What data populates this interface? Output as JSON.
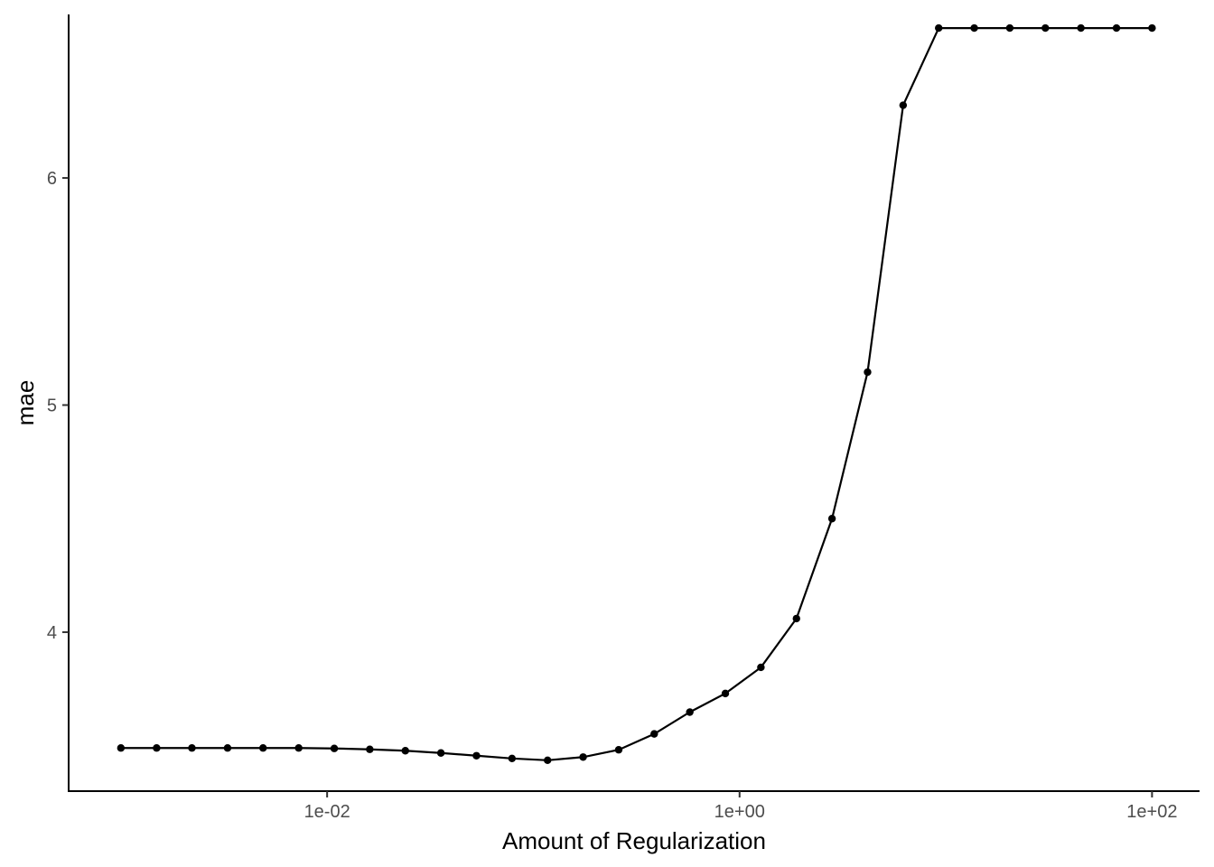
{
  "chart_data": {
    "type": "line",
    "xlabel": "Amount of Regularization",
    "ylabel": "mae",
    "x_scale": "log10",
    "xlim": [
      0.000558,
      170
    ],
    "ylim": [
      3.3,
      6.72
    ],
    "x_ticks": [
      {
        "value": 0.01,
        "label": "1e-02"
      },
      {
        "value": 1,
        "label": "1e+00"
      },
      {
        "value": 100,
        "label": "1e+02"
      }
    ],
    "y_ticks": [
      {
        "value": 4,
        "label": "4"
      },
      {
        "value": 5,
        "label": "5"
      },
      {
        "value": 6,
        "label": "6"
      }
    ],
    "grid": false,
    "colors": {
      "line": "#000000",
      "point": "#000000"
    },
    "series": [
      {
        "x": [
          0.001,
          0.00149,
          0.00221,
          0.00329,
          0.00489,
          0.00728,
          0.01083,
          0.0161,
          0.02395,
          0.03562,
          0.05298,
          0.0788,
          0.11721,
          0.17433,
          0.25929,
          0.38566,
          0.57362,
          0.85317,
          1.26896,
          1.88739,
          2.80722,
          4.17532,
          6.21017,
          9.23671,
          13.7382,
          20.4336,
          30.392,
          45.2035,
          67.2336,
          100.0
        ],
        "y": [
          3.49,
          3.49,
          3.49,
          3.49,
          3.49,
          3.49,
          3.488,
          3.484,
          3.478,
          3.468,
          3.456,
          3.444,
          3.436,
          3.45,
          3.482,
          3.552,
          3.648,
          3.73,
          3.845,
          4.06,
          4.5,
          5.145,
          6.32,
          6.66,
          6.66,
          6.66,
          6.66,
          6.66,
          6.66,
          6.66
        ]
      }
    ]
  }
}
